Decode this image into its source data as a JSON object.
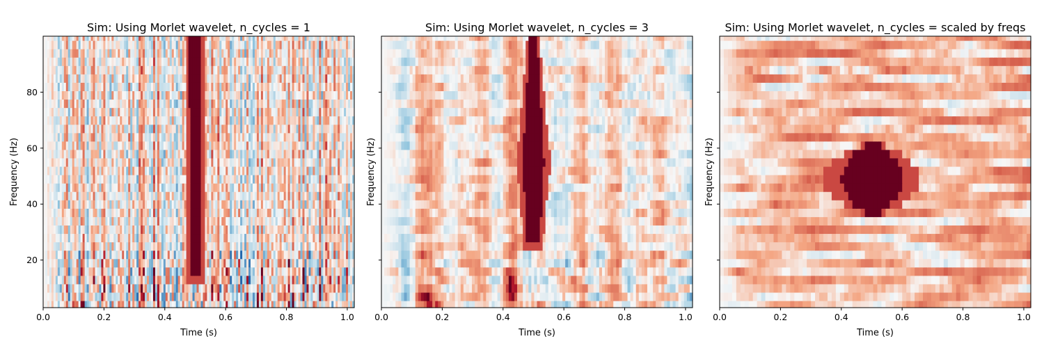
{
  "chart_data": [
    {
      "type": "heatmap",
      "title": "Sim: Using Morlet wavelet, n_cycles = 1",
      "xlabel": "Time (s)",
      "ylabel": "Frequency (Hz)",
      "xlim": [
        0.0,
        1.023
      ],
      "ylim": [
        3,
        100
      ],
      "xticks": [
        "0.0",
        "0.2",
        "0.4",
        "0.6",
        "0.8",
        "1.0"
      ],
      "yticks": [
        "20",
        "40",
        "60",
        "80"
      ],
      "show_ytick_labels": true,
      "colormap": "RdBu_r",
      "colors": {
        "positive": "#67001f",
        "neutral": "#f7f7f7",
        "negative": "#2166ac"
      },
      "frequencies_hz": [
        4,
        7,
        10,
        13,
        16,
        19,
        22,
        25,
        28,
        31,
        34,
        37,
        40,
        43,
        46,
        49,
        52,
        55,
        58,
        61,
        64,
        67,
        70,
        73,
        76,
        79,
        82,
        85,
        88,
        91,
        94,
        97,
        100
      ],
      "burst": {
        "time_s": 0.5,
        "freq_min_hz": 16,
        "freq_max_hz": 100
      },
      "time_resolution": "fine"
    },
    {
      "type": "heatmap",
      "title": "Sim: Using Morlet wavelet, n_cycles = 3",
      "xlabel": "Time (s)",
      "ylabel": "Frequency (Hz)",
      "xlim": [
        0.0,
        1.023
      ],
      "ylim": [
        3,
        100
      ],
      "xticks": [
        "0.0",
        "0.2",
        "0.4",
        "0.6",
        "0.8",
        "1.0"
      ],
      "yticks": [
        "20",
        "40",
        "60",
        "80"
      ],
      "show_ytick_labels": false,
      "colormap": "RdBu_r",
      "colors": {
        "positive": "#67001f",
        "neutral": "#f7f7f7",
        "negative": "#2166ac"
      },
      "frequencies_hz": [
        4,
        7,
        10,
        13,
        16,
        19,
        22,
        25,
        28,
        31,
        34,
        37,
        40,
        43,
        46,
        49,
        52,
        55,
        58,
        61,
        64,
        67,
        70,
        73,
        76,
        79,
        82,
        85,
        88,
        91,
        94,
        97,
        100
      ],
      "burst": {
        "time_s": 0.5,
        "freq_min_hz": 27,
        "freq_max_hz": 100
      },
      "time_resolution": "medium"
    },
    {
      "type": "heatmap",
      "title": "Sim: Using Morlet wavelet, n_cycles = scaled by freqs",
      "xlabel": "Time (s)",
      "ylabel": "Frequency (Hz)",
      "xlim": [
        0.0,
        1.023
      ],
      "ylim": [
        3,
        100
      ],
      "xticks": [
        "0.0",
        "0.2",
        "0.4",
        "0.6",
        "0.8",
        "1.0"
      ],
      "yticks": [
        "20",
        "40",
        "60",
        "80"
      ],
      "show_ytick_labels": false,
      "colormap": "RdBu_r",
      "colors": {
        "positive": "#67001f",
        "neutral": "#f7f7f7",
        "negative": "#2166ac"
      },
      "frequencies_hz": [
        4,
        7,
        10,
        13,
        16,
        19,
        22,
        25,
        28,
        31,
        34,
        37,
        40,
        43,
        46,
        49,
        52,
        55,
        58,
        61,
        64,
        67,
        70,
        73,
        76,
        79,
        82,
        85,
        88,
        91,
        94,
        97,
        100
      ],
      "burst": {
        "time_s": 0.5,
        "freq_min_hz": 37,
        "freq_max_hz": 61
      },
      "time_resolution": "coarse"
    }
  ]
}
